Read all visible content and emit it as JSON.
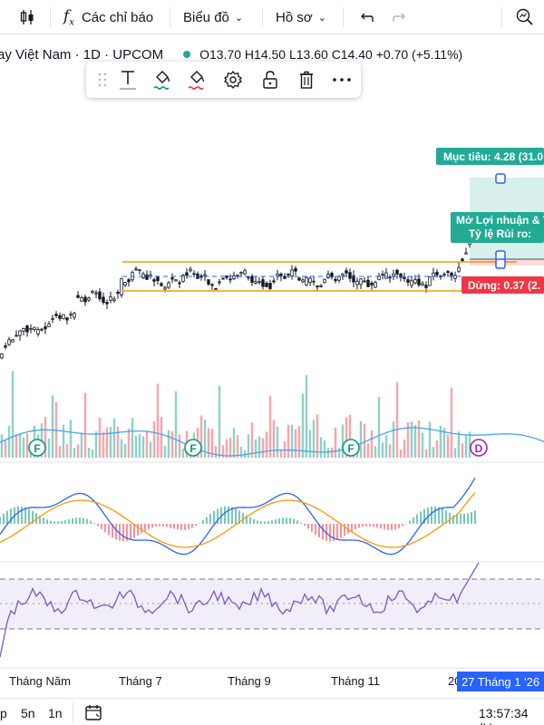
{
  "toolbar": {
    "indicators_label": "Các chỉ báo",
    "chart_label": "Biểu đồ",
    "profile_label": "Hồ sơ"
  },
  "legend": {
    "symbol": "ay Việt Nam · 1D · UPCOM",
    "open": "O13.70",
    "high": "H14.50",
    "low": "L13.60",
    "close": "C14.40",
    "change": "+0.70 (+5.11%)"
  },
  "chart_labels": {
    "target": "Mục tiêu: 4.28 (31.0",
    "open_pl_line1": "Mở Lợi nhuận & T",
    "open_pl_line2": "Tỷ lệ Rủi ro:",
    "stop": "Dừng: 0.37 (2."
  },
  "event_markers": [
    "F",
    "F",
    "F",
    "D"
  ],
  "time_axis": {
    "labels": [
      "Tháng Năm",
      "Tháng 7",
      "Tháng 9",
      "Tháng 11",
      "20"
    ],
    "cursor_date": "27 Tháng 1 '26"
  },
  "bottom": {
    "intervals": [
      "p",
      "5n",
      "1n"
    ],
    "clock": "13:57:34 (U"
  },
  "colors": {
    "up": "#089981",
    "down": "#f23645",
    "ma_blue": "#2962ff",
    "orange": "#ff9800",
    "rsi": "#7e57c2",
    "target_green": "#22ab94"
  }
}
